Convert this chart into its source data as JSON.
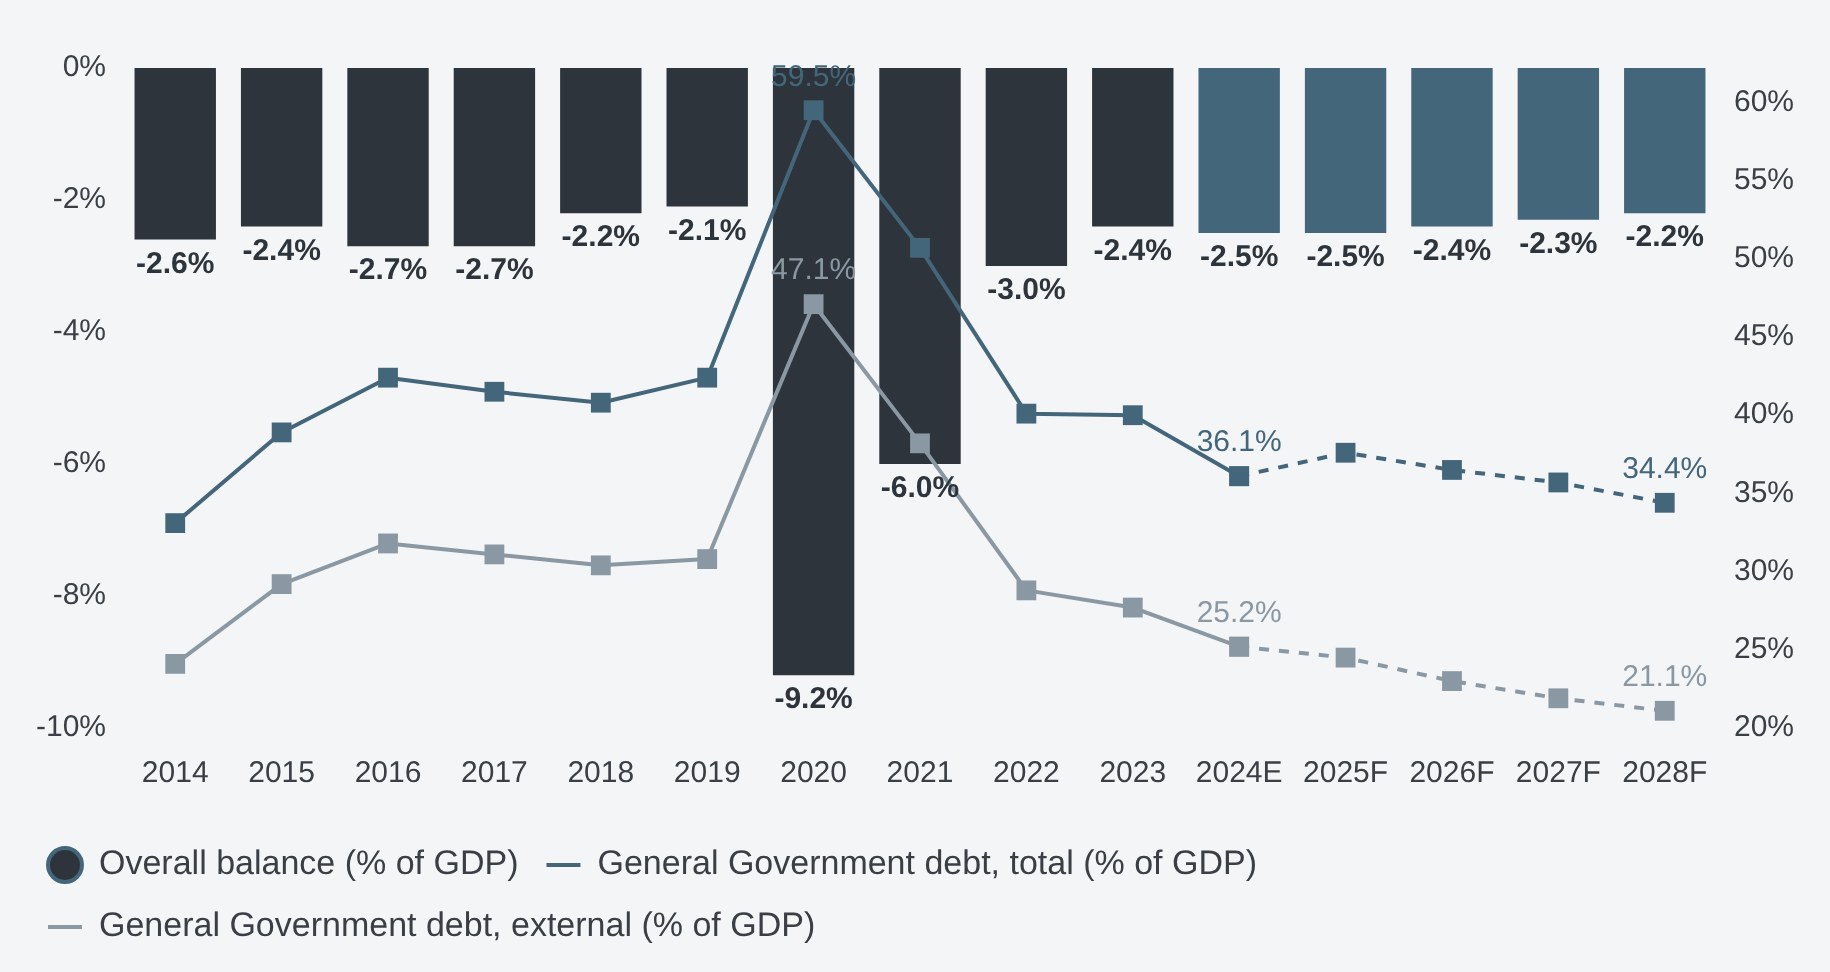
{
  "chart_data": {
    "type": "bar",
    "categories": [
      "2014",
      "2015",
      "2016",
      "2017",
      "2018",
      "2019",
      "2020",
      "2021",
      "2022",
      "2023",
      "2024E",
      "2025F",
      "2026F",
      "2027F",
      "2028F"
    ],
    "ylim": [
      -10,
      0
    ],
    "yticks": [
      {
        "value": -10,
        "label": "-10%"
      },
      {
        "value": -8,
        "label": "-8%"
      },
      {
        "value": -6,
        "label": "-6%"
      },
      {
        "value": -4,
        "label": "-4%"
      },
      {
        "value": -2,
        "label": "-2%"
      },
      {
        "value": 0,
        "label": "0%"
      }
    ],
    "y2lim": [
      20,
      62.2
    ],
    "y2ticks": [
      {
        "value": 20,
        "label": "20%"
      },
      {
        "value": 25,
        "label": "25%"
      },
      {
        "value": 30,
        "label": "30%"
      },
      {
        "value": 35,
        "label": "35%"
      },
      {
        "value": 40,
        "label": "40%"
      },
      {
        "value": 45,
        "label": "45%"
      },
      {
        "value": 50,
        "label": "50%"
      },
      {
        "value": 55,
        "label": "55%"
      },
      {
        "value": 60,
        "label": "60%"
      }
    ],
    "grid": false,
    "legend": "bottom",
    "marker": "square",
    "series": [
      {
        "name": "Overall balance (% of GDP)",
        "colors": [
          "#2d343b",
          "#2d343b",
          "#2d343b",
          "#2d343b",
          "#2d343b",
          "#2d343b",
          "#2d343b",
          "#2d343b",
          "#2d343b",
          "#2d343b",
          "#44667a",
          "#44667a",
          "#44667a",
          "#44667a",
          "#44667a"
        ],
        "values": [
          -2.6,
          -2.4,
          -2.7,
          -2.7,
          -2.2,
          -2.1,
          -9.2,
          -6.0,
          -3.0,
          -2.4,
          -2.5,
          -2.5,
          -2.4,
          -2.3,
          -2.2
        ],
        "value_labels": [
          "-2.6%",
          "-2.4%",
          "-2.7%",
          "-2.7%",
          "-2.2%",
          "-2.1%",
          "-9.2%",
          "-6.0%",
          "-3.0%",
          "-2.4%",
          "-2.5%",
          "-2.5%",
          "-2.4%",
          "-2.3%",
          "-2.2%"
        ]
      },
      {
        "type": "line",
        "axis": "y2",
        "line_style": "solid",
        "name": "General Government debt, total (% of GDP)",
        "color": "#44667a",
        "values": [
          33.1,
          38.9,
          42.4,
          41.5,
          40.8,
          42.4,
          59.5,
          50.7,
          40.1,
          40.0,
          36.1,
          null,
          null,
          null,
          null
        ],
        "value_labels": [
          null,
          null,
          null,
          null,
          null,
          null,
          "59.5%",
          null,
          null,
          null,
          "36.1%",
          null,
          null,
          null,
          null
        ]
      },
      {
        "type": "line",
        "axis": "y2",
        "line_style": "dashed",
        "color": "#44667a",
        "values": [
          null,
          null,
          null,
          null,
          null,
          null,
          null,
          null,
          null,
          null,
          36.1,
          37.6,
          36.5,
          35.7,
          34.4
        ],
        "value_labels": [
          null,
          null,
          null,
          null,
          null,
          null,
          null,
          null,
          null,
          null,
          null,
          null,
          null,
          null,
          "34.4%"
        ]
      },
      {
        "type": "line",
        "axis": "y2",
        "line_style": "solid",
        "name": "General Government debt, external (% of GDP)",
        "color": "#8a98a3",
        "values": [
          24.1,
          29.2,
          31.8,
          31.1,
          30.4,
          30.8,
          47.1,
          38.2,
          28.8,
          27.7,
          25.2,
          null,
          null,
          null,
          null
        ],
        "value_labels": [
          null,
          null,
          null,
          null,
          null,
          null,
          "47.1%",
          null,
          null,
          null,
          "25.2%",
          null,
          null,
          null,
          null
        ]
      },
      {
        "type": "line",
        "axis": "y2",
        "line_style": "dashed",
        "color": "#8a98a3",
        "values": [
          null,
          null,
          null,
          null,
          null,
          null,
          null,
          null,
          null,
          null,
          25.2,
          24.5,
          23.0,
          21.9,
          21.1
        ],
        "value_labels": [
          null,
          null,
          null,
          null,
          null,
          null,
          null,
          null,
          null,
          null,
          null,
          null,
          null,
          null,
          "21.1%"
        ]
      }
    ]
  }
}
